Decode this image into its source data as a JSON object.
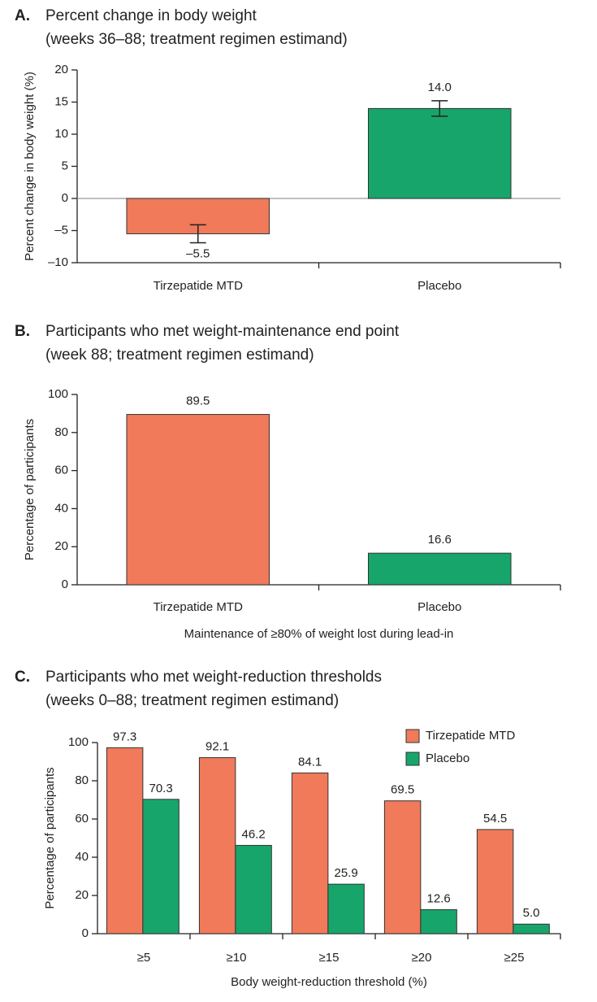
{
  "chart_data": [
    {
      "type": "bar",
      "panel": "A.",
      "title": "Percent change in body weight",
      "subtitle": "(weeks 36–88; treatment regimen estimand)",
      "ylabel": "Percent change in body weight (%)",
      "categories": [
        "Tirzepatide MTD",
        "Placebo"
      ],
      "values": [
        -5.5,
        14.0
      ],
      "value_labels": [
        "–5.5",
        "14.0"
      ],
      "errors": [
        1.4,
        1.2
      ],
      "colors": [
        "#f07a5a",
        "#17a56b"
      ],
      "ylim": [
        -10,
        20
      ],
      "yticks": [
        {
          "value": -10,
          "label": "–10"
        },
        {
          "value": -5,
          "label": "–5"
        },
        0,
        5,
        10,
        15,
        20
      ]
    },
    {
      "type": "bar",
      "panel": "B.",
      "title": "Participants who met weight-maintenance end point",
      "subtitle": "(week 88; treatment regimen estimand)",
      "ylabel": "Percentage of participants",
      "xlabel": "Maintenance of ≥80% of weight lost during lead-in",
      "categories": [
        "Tirzepatide MTD",
        "Placebo"
      ],
      "values": [
        89.5,
        16.6
      ],
      "value_labels": [
        "89.5",
        "16.6"
      ],
      "colors": [
        "#f07a5a",
        "#17a56b"
      ],
      "ylim": [
        0,
        100
      ],
      "yticks": [
        0,
        20,
        40,
        60,
        80,
        100
      ]
    },
    {
      "type": "grouped-bar",
      "panel": "C.",
      "title": "Participants who met weight-reduction thresholds",
      "subtitle": "(weeks 0–88; treatment regimen estimand)",
      "ylabel": "Percentage of participants",
      "xlabel": "Body weight-reduction threshold (%)",
      "categories": [
        "≥5",
        "≥10",
        "≥15",
        "≥20",
        "≥25"
      ],
      "series": [
        {
          "name": "Tirzepatide MTD",
          "color": "#f07a5a",
          "values": [
            97.3,
            92.1,
            84.1,
            69.5,
            54.5
          ],
          "value_labels": [
            "97.3",
            "92.1",
            "84.1",
            "69.5",
            "54.5"
          ]
        },
        {
          "name": "Placebo",
          "color": "#17a56b",
          "values": [
            70.3,
            46.2,
            25.9,
            12.6,
            5.0
          ],
          "value_labels": [
            "70.3",
            "46.2",
            "25.9",
            "12.6",
            "5.0"
          ]
        }
      ],
      "legend": "top-right",
      "ylim": [
        0,
        100
      ],
      "yticks": [
        0,
        20,
        40,
        60,
        80,
        100
      ]
    }
  ]
}
